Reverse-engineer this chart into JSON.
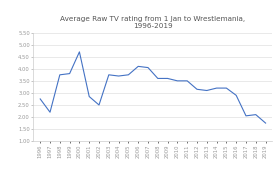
{
  "title_line1": "Average Raw TV rating from 1 Jan to Wrestlemania,",
  "title_line2": "1996-2019",
  "years": [
    1996,
    1997,
    1998,
    1999,
    2000,
    2001,
    2002,
    2003,
    2004,
    2005,
    2006,
    2007,
    2008,
    2009,
    2010,
    2011,
    2012,
    2013,
    2014,
    2015,
    2016,
    2017,
    2018,
    2019
  ],
  "ratings": [
    2.75,
    2.2,
    3.75,
    3.8,
    4.7,
    2.85,
    2.5,
    3.75,
    3.7,
    3.75,
    4.1,
    4.05,
    3.6,
    3.6,
    3.5,
    3.5,
    3.15,
    3.1,
    3.2,
    3.2,
    2.9,
    2.05,
    2.1,
    1.75
  ],
  "line_color": "#4472c4",
  "background_color": "#ffffff",
  "ylim": [
    1.0,
    5.5
  ],
  "yticks": [
    1.0,
    1.5,
    2.0,
    2.5,
    3.0,
    3.5,
    4.0,
    4.5,
    5.0,
    5.5
  ],
  "grid_color": "#e0e0e0",
  "title_fontsize": 5.2,
  "tick_fontsize": 3.8,
  "line_width": 0.8
}
